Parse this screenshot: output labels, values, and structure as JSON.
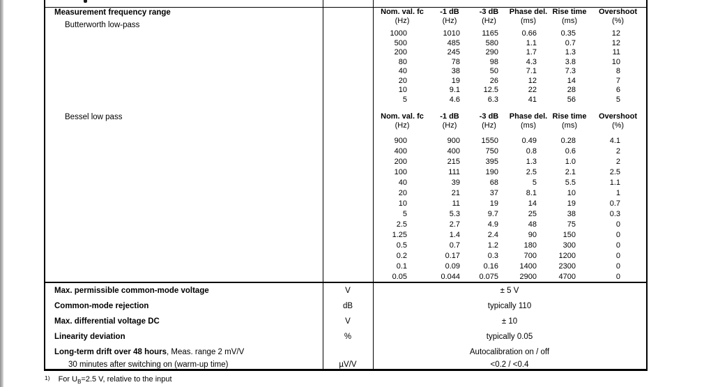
{
  "table": {
    "top_section": {
      "title": "Measurement frequency range",
      "filters": [
        {
          "name": "Butterworth low-pass",
          "columns": [
            "Nom. val. fc",
            "-1 dB",
            "-3 dB",
            "Phase del.",
            "Rise time",
            "Overshoot"
          ],
          "units": [
            "(Hz)",
            "(Hz)",
            "(Hz)",
            "(ms)",
            "(ms)",
            "(%)"
          ],
          "rows": [
            [
              "1000",
              "1010",
              "1165",
              "0.66",
              "0.35",
              "12"
            ],
            [
              "500",
              "485",
              "580",
              "1.1",
              "0.7",
              "12"
            ],
            [
              "200",
              "245",
              "290",
              "1.7",
              "1.3",
              "11"
            ],
            [
              "80",
              "78",
              "98",
              "4.3",
              "3.8",
              "10"
            ],
            [
              "40",
              "38",
              "50",
              "7.1",
              "7.3",
              "8"
            ],
            [
              "20",
              "19",
              "26",
              "12",
              "14",
              "7"
            ],
            [
              "10",
              "9.1",
              "12.5",
              "22",
              "28",
              "6"
            ],
            [
              "5",
              "4.6",
              "6.3",
              "41",
              "56",
              "5"
            ]
          ]
        },
        {
          "name": "Bessel low pass",
          "columns": [
            "Nom. val. fc",
            "-1 dB",
            "-3 dB",
            "Phase del.",
            "Rise time",
            "Overshoot"
          ],
          "units": [
            "(Hz)",
            "(Hz)",
            "(Hz)",
            "(ms)",
            "(ms)",
            "(%)"
          ],
          "rows": [
            [
              "900",
              "900",
              "1550",
              "0.49",
              "0.28",
              "4.1"
            ],
            [
              "400",
              "400",
              "750",
              "0.8",
              "0.6",
              "2"
            ],
            [
              "200",
              "215",
              "395",
              "1.3",
              "1.0",
              "2"
            ],
            [
              "100",
              "111",
              "190",
              "2.5",
              "2.1",
              "2.5"
            ],
            [
              "40",
              "39",
              "68",
              "5",
              "5.5",
              "1.1"
            ],
            [
              "20",
              "21",
              "37",
              "8.1",
              "10",
              "1"
            ],
            [
              "10",
              "11",
              "19",
              "14",
              "19",
              "0.7"
            ],
            [
              "5",
              "5.3",
              "9.7",
              "25",
              "38",
              "0.3"
            ],
            [
              "2.5",
              "2.7",
              "4.9",
              "48",
              "75",
              "0"
            ],
            [
              "1.25",
              "1.4",
              "2.4",
              "90",
              "150",
              "0"
            ],
            [
              "0.5",
              "0.7",
              "1.2",
              "180",
              "300",
              "0"
            ],
            [
              "0.2",
              "0.17",
              "0.3",
              "700",
              "1200",
              "0"
            ],
            [
              "0.1",
              "0.09",
              "0.16",
              "1400",
              "2300",
              "0"
            ],
            [
              "0.05",
              "0.044",
              "0.075",
              "2900",
              "4700",
              "0"
            ]
          ]
        }
      ]
    },
    "bottom_rows": [
      {
        "label": "Max. permissible common-mode voltage",
        "suffix": "",
        "unit": "V",
        "value": "± 5 V",
        "bold": true,
        "indent": false
      },
      {
        "label": "Common-mode rejection",
        "suffix": "",
        "unit": "dB",
        "value": "typically 110",
        "bold": true,
        "indent": false
      },
      {
        "label": "Max. differential voltage DC",
        "suffix": "",
        "unit": "V",
        "value": "± 10",
        "bold": true,
        "indent": false
      },
      {
        "label": "Linearity deviation",
        "suffix": "",
        "unit": "%",
        "value": "typically 0.05",
        "bold": true,
        "indent": false
      },
      {
        "label": "Long-term drift over 48 hours",
        "suffix": ", Meas. range 2 mV/V",
        "unit": "",
        "value": "Autocalibration on / off",
        "bold": true,
        "indent": false
      },
      {
        "label": "30 minutes after switching on (warm-up time)",
        "suffix": "",
        "unit": "µV/V",
        "value": "<0.2 / <0.4",
        "bold": false,
        "indent": true
      }
    ],
    "footnote": {
      "marker": "1)",
      "pre": "For U",
      "sub": "B",
      "post": "=2.5 V, relative to the input"
    }
  }
}
